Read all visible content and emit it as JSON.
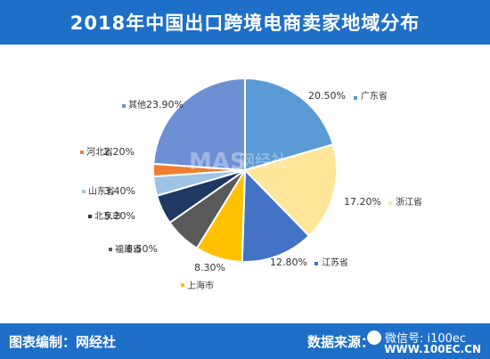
{
  "header": {
    "title": "2018年中国出口跨境电商卖家地域分布"
  },
  "footer": {
    "left": "图表编制：网经社",
    "mid": "数据来源：",
    "watermark": "微信号: i100ec",
    "site": "WWW.100EC.CN"
  },
  "watermark_center": {
    "name": "网经社",
    "logo": "MAS"
  },
  "chart_data": {
    "type": "pie",
    "title": "2018年中国出口跨境电商卖家地域分布",
    "slices": [
      {
        "name": "广东省",
        "value": 20.5,
        "label": "20.50%",
        "color": "#5b9bd5"
      },
      {
        "name": "浙江省",
        "value": 17.2,
        "label": "17.20%",
        "color": "#ffe699"
      },
      {
        "name": "江苏省",
        "value": 12.8,
        "label": "12.80%",
        "color": "#4472c4"
      },
      {
        "name": "上海市",
        "value": 8.3,
        "label": "8.30%",
        "color": "#ffc000"
      },
      {
        "name": "福建省",
        "value": 6.5,
        "label": "6.50%",
        "color": "#595959"
      },
      {
        "name": "北京市",
        "value": 5.2,
        "label": "5.20%",
        "color": "#1f3864"
      },
      {
        "name": "山东省",
        "value": 3.4,
        "label": "3.40%",
        "color": "#9dc3e6"
      },
      {
        "name": "河北省",
        "value": 2.2,
        "label": "2.20%",
        "color": "#ed7d31"
      },
      {
        "name": "其他",
        "value": 23.9,
        "label": "23.90%",
        "color": "#6d8fd4"
      }
    ],
    "legend": "inline-labels"
  }
}
